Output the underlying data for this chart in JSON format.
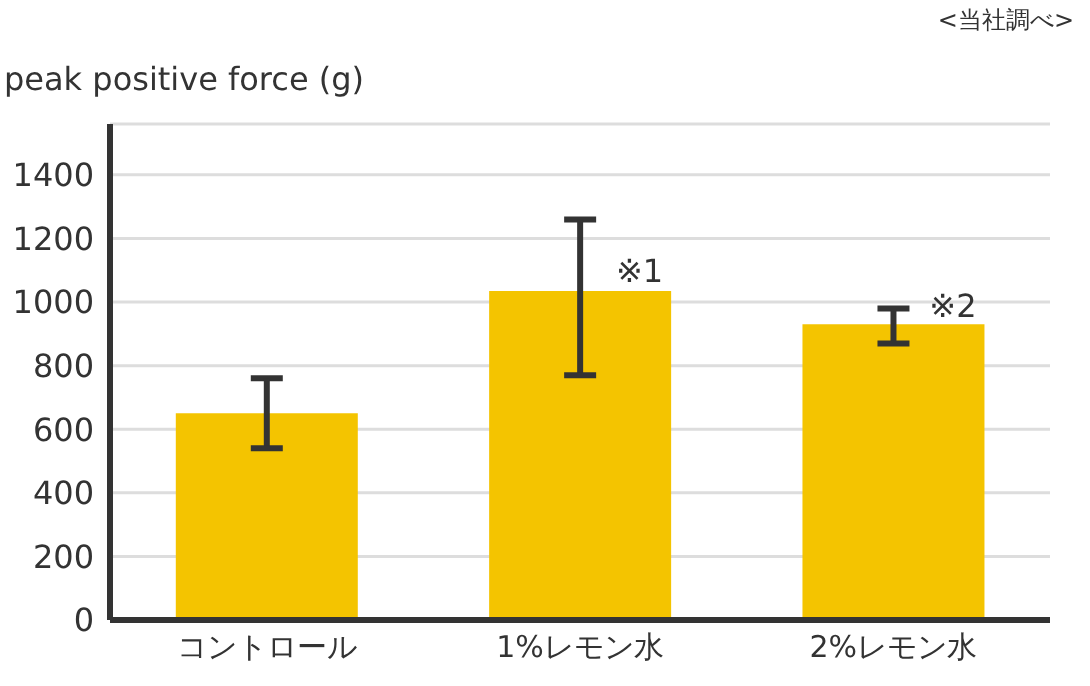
{
  "chart_data": {
    "type": "bar",
    "ylabel": "peak positive force (g)",
    "categories": [
      "コントロール",
      "1%レモン水",
      "2%レモン水"
    ],
    "values": [
      650,
      1035,
      930
    ],
    "color": "#f4c400",
    "errors": [
      [
        540,
        760
      ],
      [
        770,
        1260
      ],
      [
        870,
        980
      ]
    ],
    "ylim": [
      0,
      1560
    ],
    "yticks": [
      0,
      200,
      400,
      600,
      800,
      1000,
      1200,
      1400
    ],
    "grid": "y",
    "annotations": [
      {
        "text": "※1",
        "x": "1%レモン水",
        "y": 1100
      },
      {
        "text": "※2",
        "x": "2%レモン水",
        "y": 990
      },
      "<当社調べ>"
    ]
  }
}
